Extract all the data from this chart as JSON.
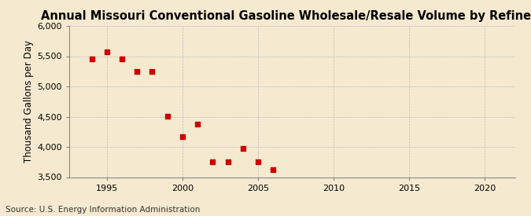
{
  "title": "Annual Missouri Conventional Gasoline Wholesale/Resale Volume by Refiners",
  "ylabel": "Thousand Gallons per Day",
  "source": "Source: U.S. Energy Information Administration",
  "years": [
    1994,
    1995,
    1996,
    1997,
    1998,
    1999,
    2000,
    2001,
    2002,
    2003,
    2004,
    2005,
    2006
  ],
  "values": [
    5450,
    5570,
    5450,
    5250,
    5250,
    4510,
    4175,
    4375,
    3750,
    3750,
    3980,
    3750,
    3620
  ],
  "xlim": [
    1992.5,
    2022
  ],
  "ylim": [
    3500,
    6000
  ],
  "yticks": [
    3500,
    4000,
    4500,
    5000,
    5500,
    6000
  ],
  "xticks": [
    1995,
    2000,
    2005,
    2010,
    2015,
    2020
  ],
  "marker_color": "#cc0000",
  "marker": "s",
  "marker_size": 4,
  "bg_color": "#f5ead0",
  "grid_color": "#bbbbbb",
  "title_fontsize": 10.5,
  "label_fontsize": 8.5,
  "tick_fontsize": 8,
  "source_fontsize": 7.5
}
